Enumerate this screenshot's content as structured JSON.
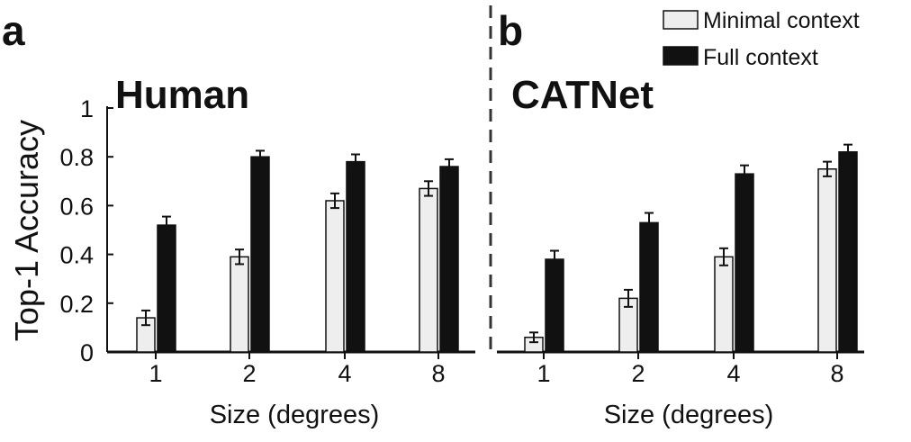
{
  "panels": [
    {
      "letter": "a",
      "title": "Human",
      "xlabel": "Size (degrees)"
    },
    {
      "letter": "b",
      "title": "CATNet",
      "xlabel": "Size (degrees)"
    }
  ],
  "ylabel": "Top-1 Accuracy",
  "y_ticks": [
    "0",
    "0.2",
    "0.4",
    "0.6",
    "0.8",
    "1"
  ],
  "legend": [
    {
      "label": "Minimal context",
      "color": "#eeeeee"
    },
    {
      "label": "Full context",
      "color": "#111111"
    }
  ],
  "chart_data": [
    {
      "type": "bar",
      "title": "Human",
      "categories": [
        "1",
        "2",
        "4",
        "8"
      ],
      "xlabel": "Size (degrees)",
      "ylabel": "Top-1 Accuracy",
      "ylim": [
        0,
        1
      ],
      "series": [
        {
          "name": "Minimal context",
          "values": [
            0.14,
            0.39,
            0.62,
            0.67
          ],
          "errors": [
            0.03,
            0.03,
            0.03,
            0.03
          ]
        },
        {
          "name": "Full context",
          "values": [
            0.52,
            0.8,
            0.78,
            0.76
          ],
          "errors": [
            0.035,
            0.025,
            0.03,
            0.03
          ]
        }
      ]
    },
    {
      "type": "bar",
      "title": "CATNet",
      "categories": [
        "1",
        "2",
        "4",
        "8"
      ],
      "xlabel": "Size (degrees)",
      "ylabel": "Top-1 Accuracy",
      "ylim": [
        0,
        1
      ],
      "series": [
        {
          "name": "Minimal context",
          "values": [
            0.06,
            0.22,
            0.39,
            0.75
          ],
          "errors": [
            0.02,
            0.035,
            0.035,
            0.03
          ]
        },
        {
          "name": "Full context",
          "values": [
            0.38,
            0.53,
            0.73,
            0.82
          ],
          "errors": [
            0.035,
            0.04,
            0.035,
            0.03
          ]
        }
      ]
    }
  ]
}
